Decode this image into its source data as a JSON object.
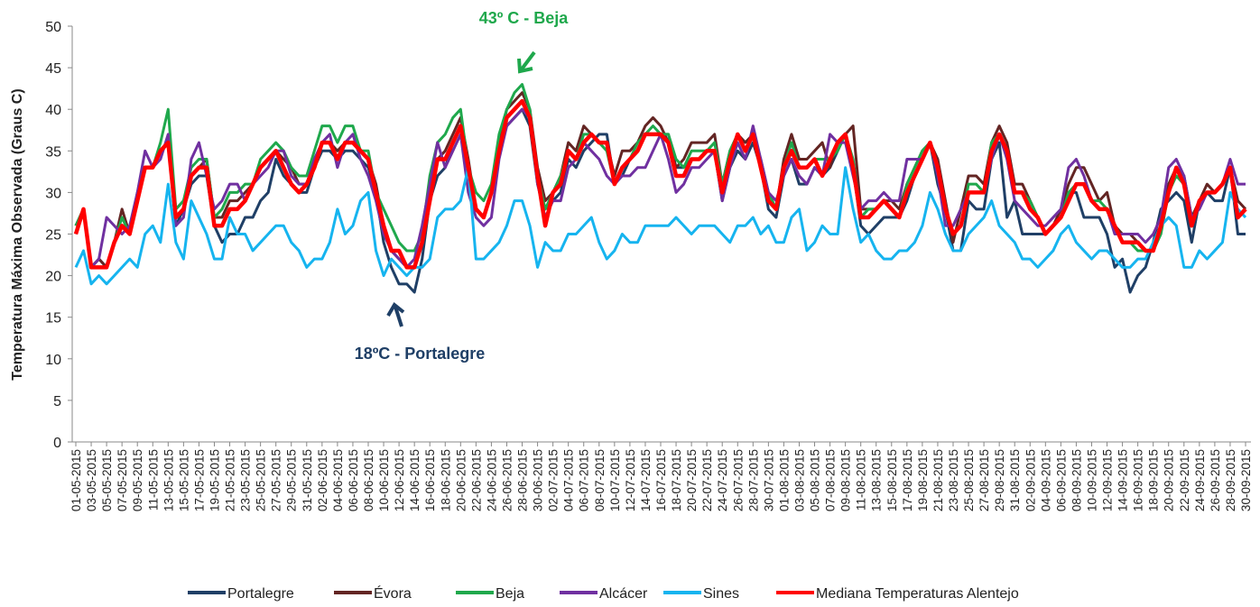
{
  "chart_data": {
    "type": "line",
    "y_label": "Temperatura Máxima Observada (Graus C)",
    "annotations": [
      {
        "text": "43º C - Beja",
        "color": "#1fa84c"
      },
      {
        "text": "18ºC  - Portalegre",
        "color": "#1f3f66"
      }
    ],
    "ylim": [
      0,
      50
    ],
    "yticks": [
      0,
      5,
      10,
      15,
      20,
      25,
      30,
      35,
      40,
      45,
      50
    ],
    "grid": false,
    "legend": "bottom",
    "categories": [
      "01-05-2015",
      null,
      "03-05-2015",
      null,
      "05-05-2015",
      null,
      "07-05-2015",
      null,
      "09-05-2015",
      null,
      "11-05-2015",
      null,
      "13-05-2015",
      null,
      "15-05-2015",
      null,
      "17-05-2015",
      null,
      "19-05-2015",
      null,
      "21-05-2015",
      null,
      "23-05-2015",
      null,
      "25-05-2015",
      null,
      "27-05-2015",
      null,
      "29-05-2015",
      null,
      "31-05-2015",
      null,
      "02-06-2015",
      null,
      "04-06-2015",
      null,
      "06-06-2015",
      null,
      "08-06-2015",
      null,
      "10-06-2015",
      null,
      "12-06-2015",
      null,
      "14-06-2015",
      null,
      "16-06-2015",
      null,
      "18-06-2015",
      null,
      "20-06-2015",
      null,
      "22-06-2015",
      null,
      "24-06-2015",
      null,
      "26-06-2015",
      null,
      "28-06-2015",
      null,
      "30-06-2015",
      null,
      "02-07-2015",
      null,
      "04-07-2015",
      null,
      "06-07-2015",
      null,
      "08-07-2015",
      null,
      "10-07-2015",
      null,
      "12-07-2015",
      null,
      "14-07-2015",
      null,
      "16-07-2015",
      null,
      "18-07-2015",
      null,
      "20-07-2015",
      null,
      "22-07-2015",
      null,
      "24-07-2015",
      null,
      "26-07-2015",
      null,
      "28-07-2015",
      null,
      "30-07-2015",
      null,
      "01-08-2015",
      null,
      "03-08-2015",
      null,
      "05-08-2015",
      null,
      "07-08-2015",
      null,
      "09-08-2015",
      null,
      "11-08-2015",
      null,
      "13-08-2015",
      null,
      "15-08-2015",
      null,
      "17-08-2015",
      null,
      "19-08-2015",
      null,
      "21-08-2015",
      null,
      "23-08-2015",
      null,
      "25-08-2015",
      null,
      "27-08-2015",
      null,
      "29-08-2015",
      null,
      "31-08-2015",
      null,
      "02-09-2015",
      null,
      "04-09-2015",
      null,
      "06-09-2015",
      null,
      "08-09-2015",
      null,
      "10-09-2015",
      null,
      "12-09-2015",
      null,
      "14-09-2015",
      null,
      "16-09-2015",
      null,
      "18-09-2015",
      null,
      "20-09-2015",
      null,
      "22-09-2015",
      null,
      "24-09-2015",
      null,
      "26-09-2015",
      null,
      "28-09-2015",
      null,
      "30-09-2015"
    ],
    "series": [
      {
        "name": "Portalegre",
        "color": "#1f3f66",
        "width": 3,
        "values": [
          26,
          28,
          21,
          22,
          21,
          24,
          26,
          25,
          29,
          33,
          33,
          35,
          36,
          26,
          28,
          31,
          32,
          32,
          26,
          24,
          25,
          25,
          27,
          27,
          29,
          30,
          34,
          32,
          31,
          30,
          30,
          33,
          35,
          35,
          34,
          35,
          35,
          34,
          33,
          30,
          24,
          21,
          19,
          19,
          18,
          22,
          29,
          32,
          33,
          36,
          38,
          33,
          28,
          27,
          30,
          35,
          38,
          39,
          40,
          38,
          31,
          28,
          29,
          30,
          34,
          33,
          35,
          36,
          37,
          37,
          31,
          32,
          34,
          35,
          37,
          37,
          37,
          37,
          33,
          33,
          34,
          34,
          35,
          35,
          29,
          33,
          35,
          34,
          36,
          33,
          28,
          27,
          32,
          34,
          31,
          31,
          33,
          32,
          33,
          35,
          37,
          33,
          26,
          25,
          26,
          27,
          27,
          27,
          29,
          32,
          34,
          36,
          31,
          28,
          23,
          23,
          29,
          28,
          28,
          34,
          36,
          27,
          29,
          25,
          25,
          25,
          25,
          26,
          27,
          30,
          30,
          27,
          27,
          27,
          25,
          21,
          22,
          18,
          20,
          21,
          24,
          28,
          29,
          30,
          29,
          24,
          29,
          30,
          29,
          29,
          33,
          25,
          25
        ]
      },
      {
        "name": "Évora",
        "color": "#632523",
        "width": 3,
        "values": [
          26,
          28,
          21,
          22,
          21,
          24,
          28,
          25,
          29,
          33,
          33,
          35,
          36,
          28,
          29,
          32,
          33,
          34,
          27,
          27,
          29,
          29,
          30,
          31,
          33,
          34,
          35,
          34,
          33,
          31,
          31,
          34,
          36,
          36,
          35,
          36,
          36,
          35,
          34,
          31,
          26,
          23,
          22,
          21,
          21,
          24,
          30,
          34,
          35,
          37,
          39,
          34,
          28,
          27,
          30,
          36,
          40,
          41,
          42,
          40,
          33,
          29,
          30,
          32,
          36,
          35,
          38,
          37,
          36,
          36,
          32,
          35,
          35,
          36,
          38,
          39,
          38,
          36,
          33,
          34,
          36,
          36,
          36,
          37,
          31,
          35,
          37,
          36,
          37,
          34,
          30,
          28,
          34,
          37,
          34,
          34,
          35,
          36,
          33,
          36,
          37,
          38,
          28,
          28,
          28,
          29,
          29,
          28,
          31,
          33,
          35,
          36,
          34,
          29,
          24,
          28,
          32,
          32,
          31,
          36,
          38,
          36,
          31,
          31,
          29,
          27,
          25,
          26,
          28,
          31,
          33,
          33,
          31,
          29,
          30,
          26,
          25,
          25,
          24,
          23,
          23,
          26,
          31,
          33,
          32,
          27,
          29,
          31,
          30,
          31,
          33,
          29,
          28
        ]
      },
      {
        "name": "Beja",
        "color": "#1fa84c",
        "width": 3,
        "values": [
          26,
          28,
          21,
          21,
          21,
          24,
          27,
          25,
          30,
          33,
          33,
          36,
          40,
          28,
          29,
          33,
          34,
          34,
          27,
          28,
          30,
          30,
          31,
          31,
          34,
          35,
          36,
          35,
          33,
          32,
          32,
          35,
          38,
          38,
          36,
          38,
          38,
          35,
          35,
          30,
          28,
          26,
          24,
          23,
          23,
          25,
          32,
          36,
          37,
          39,
          40,
          33,
          30,
          29,
          31,
          37,
          40,
          42,
          43,
          40,
          32,
          28,
          30,
          32,
          35,
          34,
          37,
          37,
          36,
          35,
          31,
          33,
          34,
          36,
          37,
          38,
          37,
          37,
          34,
          33,
          35,
          35,
          35,
          36,
          31,
          35,
          37,
          35,
          37,
          33,
          30,
          28,
          33,
          36,
          33,
          33,
          34,
          34,
          34,
          35,
          37,
          34,
          27,
          28,
          28,
          29,
          28,
          27,
          31,
          33,
          35,
          36,
          33,
          28,
          25,
          26,
          31,
          31,
          30,
          36,
          37,
          35,
          30,
          30,
          29,
          27,
          25,
          26,
          27,
          30,
          31,
          31,
          29,
          29,
          28,
          26,
          24,
          24,
          23,
          23,
          23,
          25,
          30,
          32,
          31,
          26,
          29,
          30,
          30,
          31,
          33,
          27,
          28
        ]
      },
      {
        "name": "Alcácer",
        "color": "#7030a0",
        "width": 3,
        "values": [
          25,
          28,
          21,
          22,
          27,
          26,
          25,
          26,
          30,
          35,
          33,
          34,
          37,
          26,
          27,
          34,
          36,
          32,
          28,
          29,
          31,
          31,
          29,
          31,
          32,
          33,
          35,
          35,
          32,
          31,
          31,
          34,
          36,
          37,
          33,
          36,
          37,
          34,
          32,
          29,
          25,
          23,
          22,
          21,
          22,
          26,
          31,
          36,
          33,
          35,
          37,
          30,
          27,
          26,
          27,
          34,
          38,
          39,
          40,
          39,
          31,
          27,
          29,
          29,
          33,
          34,
          36,
          35,
          34,
          32,
          31,
          32,
          32,
          33,
          33,
          35,
          37,
          34,
          30,
          31,
          33,
          33,
          34,
          35,
          29,
          33,
          36,
          34,
          38,
          34,
          30,
          29,
          32,
          34,
          32,
          31,
          33,
          32,
          37,
          36,
          36,
          32,
          28,
          29,
          29,
          30,
          29,
          29,
          34,
          34,
          34,
          36,
          32,
          26,
          26,
          28,
          30,
          30,
          30,
          34,
          37,
          34,
          29,
          28,
          27,
          26,
          26,
          27,
          28,
          33,
          34,
          32,
          29,
          28,
          28,
          25,
          25,
          25,
          25,
          24,
          25,
          27,
          33,
          34,
          32,
          27,
          28,
          30,
          30,
          31,
          34,
          31,
          31
        ]
      },
      {
        "name": "Sines",
        "color": "#16b4ef",
        "width": 3,
        "values": [
          21,
          23,
          19,
          20,
          19,
          20,
          21,
          22,
          21,
          25,
          26,
          24,
          31,
          24,
          22,
          29,
          27,
          25,
          22,
          22,
          27,
          25,
          25,
          23,
          24,
          25,
          26,
          26,
          24,
          23,
          21,
          22,
          22,
          24,
          28,
          25,
          26,
          29,
          30,
          23,
          20,
          22,
          21,
          20,
          21,
          21,
          22,
          27,
          28,
          28,
          29,
          33,
          22,
          22,
          23,
          24,
          26,
          29,
          29,
          26,
          21,
          24,
          23,
          23,
          25,
          25,
          26,
          27,
          24,
          22,
          23,
          25,
          24,
          24,
          26,
          26,
          26,
          26,
          27,
          26,
          25,
          26,
          26,
          26,
          25,
          24,
          26,
          26,
          27,
          25,
          26,
          24,
          24,
          27,
          28,
          23,
          24,
          26,
          25,
          25,
          33,
          28,
          24,
          25,
          23,
          22,
          22,
          23,
          23,
          24,
          26,
          30,
          28,
          25,
          23,
          23,
          25,
          26,
          27,
          29,
          26,
          25,
          24,
          22,
          22,
          21,
          22,
          23,
          25,
          26,
          24,
          23,
          22,
          23,
          23,
          22,
          21,
          21,
          22,
          22,
          24,
          26,
          27,
          26,
          21,
          21,
          23,
          22,
          23,
          24,
          30,
          28,
          27
        ]
      },
      {
        "name": "Mediana Temperaturas Alentejo",
        "color": "#ff0000",
        "width": 4.5,
        "values": [
          25,
          28,
          21,
          21,
          21,
          24,
          26,
          25,
          29,
          33,
          33,
          35,
          36,
          27,
          28,
          32,
          33,
          33,
          26,
          26,
          28,
          28,
          29,
          31,
          33,
          34,
          35,
          33,
          31,
          30,
          31,
          33,
          36,
          36,
          34,
          36,
          36,
          35,
          34,
          30,
          26,
          23,
          23,
          21,
          21,
          24,
          29,
          34,
          34,
          36,
          38,
          33,
          28,
          27,
          30,
          35,
          39,
          40,
          41,
          39,
          32,
          26,
          30,
          31,
          35,
          34,
          36,
          37,
          36,
          36,
          31,
          33,
          34,
          35,
          37,
          37,
          37,
          36,
          32,
          32,
          34,
          34,
          35,
          35,
          30,
          34,
          37,
          35,
          37,
          33,
          29,
          28,
          33,
          35,
          33,
          33,
          34,
          32,
          34,
          36,
          37,
          33,
          27,
          27,
          28,
          29,
          28,
          27,
          30,
          32,
          34,
          36,
          33,
          28,
          25,
          26,
          30,
          30,
          30,
          35,
          37,
          35,
          30,
          30,
          28,
          27,
          25,
          26,
          27,
          29,
          31,
          31,
          29,
          28,
          28,
          26,
          24,
          24,
          24,
          23,
          23,
          26,
          30,
          33,
          31,
          26,
          29,
          30,
          30,
          31,
          33,
          27,
          28
        ]
      }
    ]
  }
}
